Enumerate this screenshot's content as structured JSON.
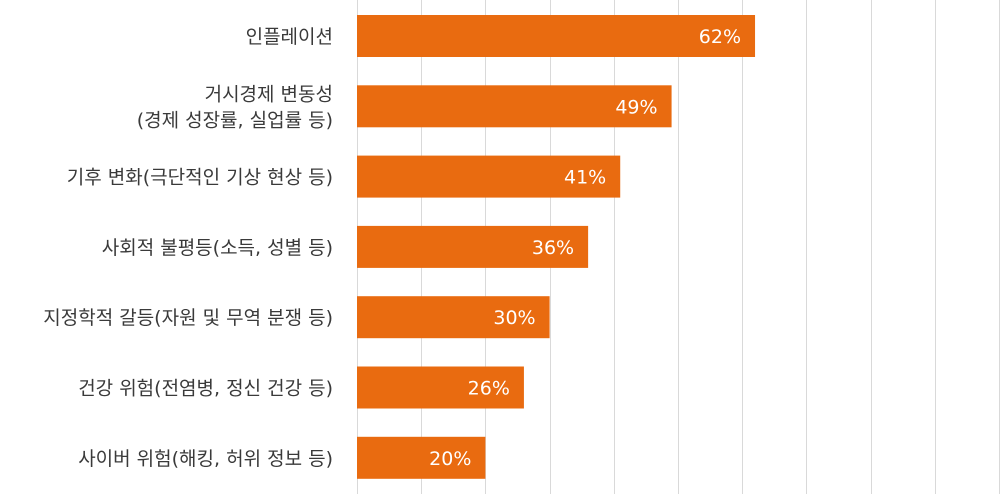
{
  "chart_data": {
    "type": "bar",
    "orientation": "horizontal",
    "categories": [
      [
        "인플레이션"
      ],
      [
        "거시경제 변동성",
        "(경제 성장률, 실업률 등)"
      ],
      [
        "기후 변화(극단적인 기상 현상 등)"
      ],
      [
        "사회적 불평등(소득, 성별 등)"
      ],
      [
        "지정학적 갈등(자원 및 무역 분쟁 등)"
      ],
      [
        "건강 위험(전염병, 정신 건강 등)"
      ],
      [
        "사이버 위험(해킹, 허위 정보 등)"
      ]
    ],
    "values": [
      62,
      49,
      41,
      36,
      30,
      26,
      20
    ],
    "value_labels": [
      "62%",
      "49%",
      "41%",
      "36%",
      "30%",
      "26%",
      "20%"
    ],
    "xlim": [
      0,
      100
    ],
    "grid": true,
    "bar_color": "#e96b10",
    "grid_color": "#d9d9d9",
    "label_color": "#3a3a3a",
    "value_label_color": "#ffffff"
  }
}
